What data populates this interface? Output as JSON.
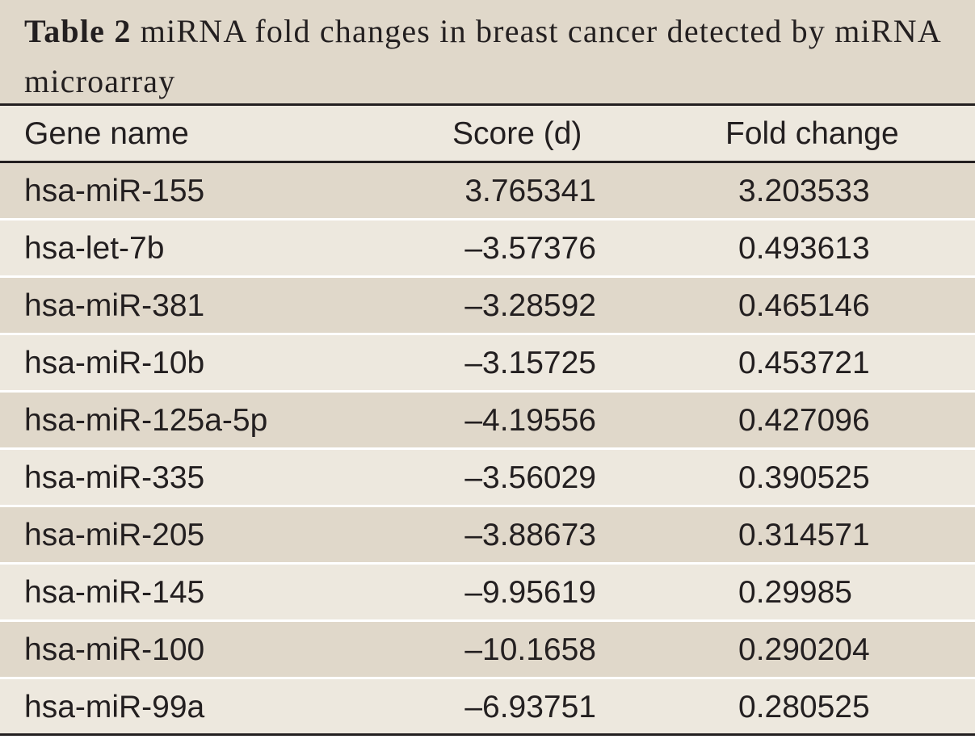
{
  "caption": {
    "label": "Table 2",
    "text": "miRNA fold changes in breast cancer detected by miRNA microarray"
  },
  "table": {
    "headers": [
      "Gene name",
      "Score (d)",
      "Fold change"
    ],
    "rows": [
      [
        "hsa-miR-155",
        "3.765341",
        "3.203533"
      ],
      [
        "hsa-let-7b",
        "–3.57376",
        "0.493613"
      ],
      [
        "hsa-miR-381",
        "–3.28592",
        "0.465146"
      ],
      [
        "hsa-miR-10b",
        "–3.15725",
        "0.453721"
      ],
      [
        "hsa-miR-125a-5p",
        "–4.19556",
        "0.427096"
      ],
      [
        "hsa-miR-335",
        "–3.56029",
        "0.390525"
      ],
      [
        "hsa-miR-205",
        "–3.88673",
        "0.314571"
      ],
      [
        "hsa-miR-145",
        "–9.95619",
        "0.29985"
      ],
      [
        "hsa-miR-100",
        "–10.1658",
        "0.290204"
      ],
      [
        "hsa-miR-99a",
        "–6.93751",
        "0.280525"
      ]
    ]
  },
  "colors": {
    "band_dark": "#e0d8ca",
    "band_light": "#ede8de",
    "rule": "#231f20",
    "text": "#231f20"
  }
}
